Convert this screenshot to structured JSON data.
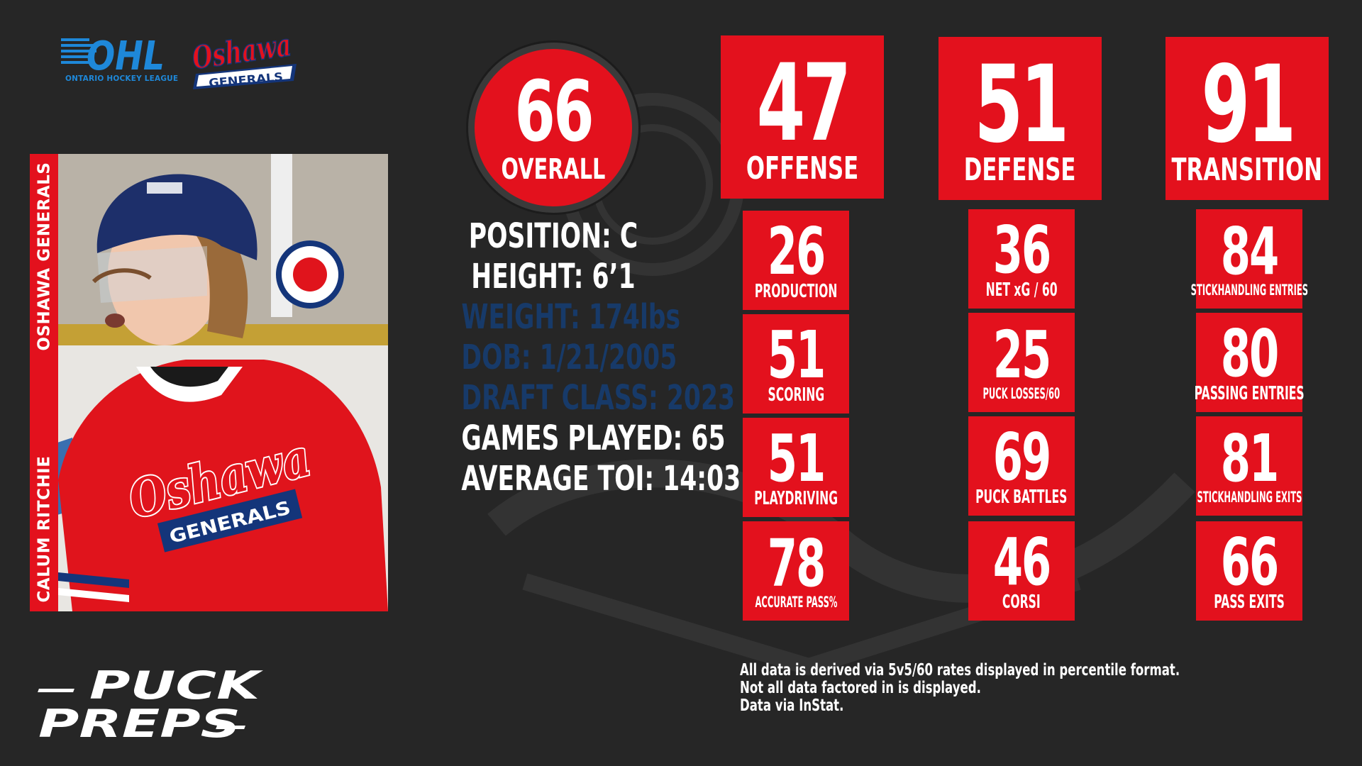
{
  "league": {
    "logo_text": "OHL",
    "sub_text": "ONTARIO HOCKEY LEAGUE"
  },
  "team": {
    "logo_line1": "Oshawa",
    "logo_line2": "GENERALS"
  },
  "player": {
    "name": "CALUM RITCHIE",
    "team": "OSHAWA GENERALS",
    "jersey_script": "Oshawa",
    "jersey_sub": "GENERALS"
  },
  "overall": {
    "value": "66",
    "label": "OVERALL"
  },
  "info": [
    {
      "text": "POSITION: C",
      "dim": false
    },
    {
      "text": "HEIGHT: 6’1",
      "dim": false
    },
    {
      "text": "WEIGHT: 174lbs",
      "dim": true
    },
    {
      "text": "DOB: 1/21/2005",
      "dim": true
    },
    {
      "text": "DRAFT CLASS: 2023",
      "dim": true
    },
    {
      "text": "GAMES PLAYED: 65",
      "dim": false
    },
    {
      "text": "AVERAGE TOI: 14:03",
      "dim": false
    }
  ],
  "categories": [
    {
      "value": "47",
      "label": "OFFENSE"
    },
    {
      "value": "51",
      "label": "DEFENSE"
    },
    {
      "value": "91",
      "label": "TRANSITION"
    }
  ],
  "stats": {
    "offense": [
      {
        "value": "26",
        "label": "PRODUCTION"
      },
      {
        "value": "51",
        "label": "SCORING"
      },
      {
        "value": "51",
        "label": "PLAYDRIVING"
      },
      {
        "value": "78",
        "label": "ACCURATE PASS%"
      }
    ],
    "defense": [
      {
        "value": "36",
        "label": "NET xG / 60"
      },
      {
        "value": "25",
        "label": "PUCK LOSSES/60"
      },
      {
        "value": "69",
        "label": "PUCK BATTLES"
      },
      {
        "value": "46",
        "label": "CORSI"
      }
    ],
    "transition": [
      {
        "value": "84",
        "label": "STICKHANDLING ENTRIES"
      },
      {
        "value": "80",
        "label": "PASSING ENTRIES"
      },
      {
        "value": "81",
        "label": "STICKHANDLING EXITS"
      },
      {
        "value": "66",
        "label": "PASS EXITS"
      }
    ]
  },
  "footnote": [
    "All data is derived via 5v5/60 rates displayed in percentile format.",
    "Not all data factored in is displayed.",
    "Data via InStat."
  ],
  "brand": {
    "line1": "PUCK",
    "line2": "PREPS"
  },
  "colors": {
    "accent": "#e3111d",
    "background": "#262626",
    "dim_text": "#173a69"
  }
}
